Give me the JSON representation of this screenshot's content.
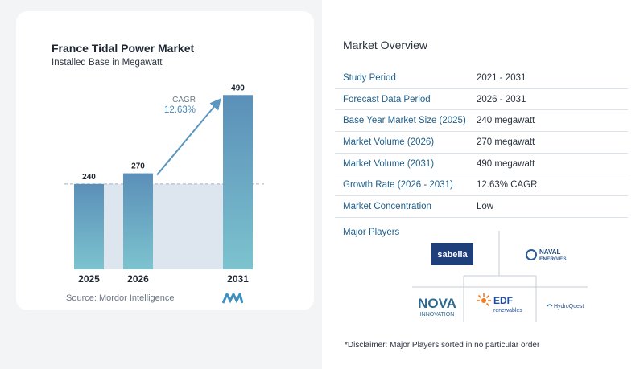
{
  "chart_data": {
    "type": "bar",
    "title": "France Tidal Power Market",
    "subtitle": "Installed Base in Megawatt",
    "categories": [
      "2025",
      "2026",
      "2031"
    ],
    "values": [
      240,
      270,
      490
    ],
    "data_labels": [
      "240",
      "270",
      "490"
    ],
    "ylim": [
      0,
      520
    ],
    "xlabel": "",
    "ylabel": "",
    "cagr_label": "CAGR",
    "cagr_value": "12.63%",
    "colors": {
      "bar_top": "#5b8fb8",
      "bar_bottom": "#7cc3cf",
      "fill": "#dde5ee",
      "arrow": "#5b96c0"
    }
  },
  "source": "Source: Mordor Intelligence",
  "overview": {
    "title": "Market Overview",
    "rows": [
      {
        "key": "Study Period",
        "value": "2021 - 2031"
      },
      {
        "key": "Forecast Data Period",
        "value": "2026 - 2031"
      },
      {
        "key": "Base Year Market Size (2025)",
        "value": "240 megawatt"
      },
      {
        "key": "Market Volume (2026)",
        "value": "270 megawatt"
      },
      {
        "key": "Market Volume (2031)",
        "value": "490 megawatt"
      },
      {
        "key": "Growth Rate (2026 - 2031)",
        "value": "12.63% CAGR"
      },
      {
        "key": "Market Concentration",
        "value": "Low"
      }
    ]
  },
  "players": {
    "title": "Major Players",
    "logos": [
      {
        "name": "sabella",
        "text": "sabella"
      },
      {
        "name": "naval-energies",
        "text": "NAVAL",
        "sub": "ENERGIES"
      },
      {
        "name": "nova-innovation",
        "text": "NOVA",
        "sub": "INNOVATION"
      },
      {
        "name": "edf-renewables",
        "text": "EDF",
        "sub": "renewables"
      },
      {
        "name": "hydroquest",
        "text": "HydroQuest"
      }
    ]
  },
  "disclaimer": "*Disclaimer: Major Players sorted in no particular order"
}
